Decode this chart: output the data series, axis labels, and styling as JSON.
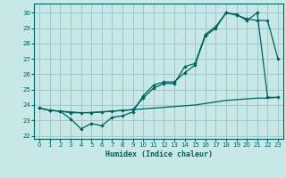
{
  "title": "",
  "xlabel": "Humidex (Indice chaleur)",
  "bg_color": "#c8e8e8",
  "grid_color": "#a0c8c8",
  "line_color": "#006060",
  "xlim": [
    -0.5,
    23.5
  ],
  "ylim": [
    21.8,
    30.6
  ],
  "yticks": [
    22,
    23,
    24,
    25,
    26,
    27,
    28,
    29,
    30
  ],
  "xticks": [
    0,
    1,
    2,
    3,
    4,
    5,
    6,
    7,
    8,
    9,
    10,
    11,
    12,
    13,
    14,
    15,
    16,
    17,
    18,
    19,
    20,
    21,
    22,
    23
  ],
  "line1_x": [
    0,
    1,
    2,
    3,
    4,
    5,
    6,
    7,
    8,
    9,
    10,
    11,
    12,
    13,
    14,
    15,
    16,
    17,
    18,
    19,
    20,
    21,
    22,
    23
  ],
  "line1_y": [
    23.8,
    23.65,
    23.6,
    23.55,
    23.5,
    23.52,
    23.55,
    23.6,
    23.65,
    23.7,
    23.75,
    23.8,
    23.85,
    23.9,
    23.95,
    24.0,
    24.1,
    24.2,
    24.3,
    24.35,
    24.4,
    24.45,
    24.45,
    24.5
  ],
  "line2_x": [
    0,
    1,
    2,
    3,
    4,
    5,
    6,
    7,
    8,
    9,
    10,
    11,
    12,
    13,
    14,
    15,
    16,
    17,
    18,
    19,
    20,
    21,
    22,
    23
  ],
  "line2_y": [
    23.8,
    23.65,
    23.6,
    23.1,
    22.45,
    22.8,
    22.65,
    23.2,
    23.3,
    23.55,
    24.6,
    25.3,
    25.5,
    25.5,
    26.1,
    26.6,
    28.5,
    29.0,
    30.0,
    29.9,
    29.5,
    30.0,
    24.5,
    24.5
  ],
  "line3_x": [
    0,
    1,
    2,
    3,
    4,
    5,
    6,
    7,
    8,
    9,
    10,
    11,
    12,
    13,
    14,
    15,
    16,
    17,
    18,
    19,
    20,
    21,
    22,
    23
  ],
  "line3_y": [
    23.8,
    23.65,
    23.6,
    23.5,
    23.5,
    23.5,
    23.55,
    23.6,
    23.65,
    23.7,
    24.45,
    25.1,
    25.4,
    25.4,
    26.5,
    26.7,
    28.6,
    29.1,
    30.0,
    29.85,
    29.6,
    29.5,
    29.5,
    27.0
  ]
}
